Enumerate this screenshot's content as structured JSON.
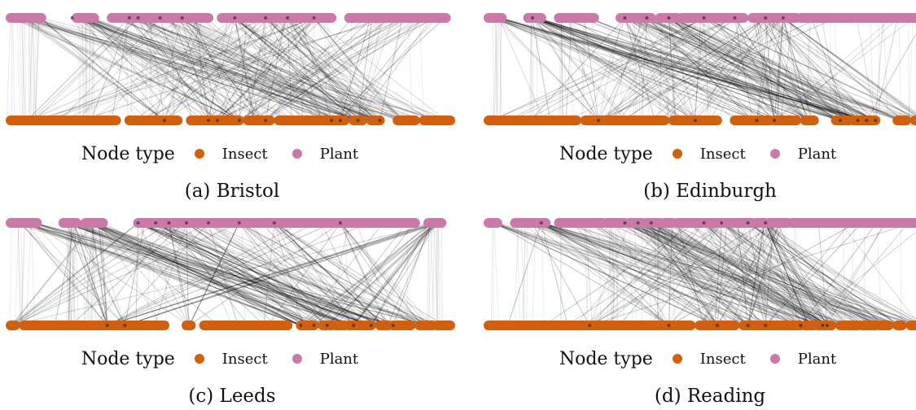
{
  "colors": {
    "insect": "#d45f0a",
    "plant": "#cc78a8",
    "edge": "#000000"
  },
  "legend": {
    "title": "Node type",
    "insect_label": "Insect",
    "plant_label": "Plant"
  },
  "panels": [
    {
      "caption": "(a) Bristol",
      "plant_segments": [
        [
          0.0,
          0.07
        ],
        [
          0.15,
          0.19
        ],
        [
          0.23,
          0.45
        ],
        [
          0.48,
          0.73
        ],
        [
          0.77,
          0.99
        ]
      ],
      "insect_segments": [
        [
          0.0,
          0.24
        ],
        [
          0.27,
          0.38
        ],
        [
          0.41,
          0.52
        ],
        [
          0.54,
          0.59
        ],
        [
          0.61,
          0.76
        ],
        [
          0.78,
          0.8
        ],
        [
          0.82,
          0.84
        ],
        [
          0.88,
          0.92
        ],
        [
          0.94,
          1.0
        ]
      ],
      "hubs_top": [
        0.14,
        0.27,
        0.29,
        0.34,
        0.39,
        0.51,
        0.58,
        0.63,
        0.69
      ],
      "hubs_bottom": [
        0.35,
        0.45,
        0.47,
        0.52,
        0.58,
        0.73,
        0.75,
        0.79,
        0.84
      ],
      "seed": 11
    },
    {
      "caption": "(b) Edinburgh",
      "plant_segments": [
        [
          0.0,
          0.03
        ],
        [
          0.09,
          0.12
        ],
        [
          0.16,
          0.24
        ],
        [
          0.3,
          0.37
        ],
        [
          0.39,
          0.43
        ],
        [
          0.44,
          0.58
        ],
        [
          0.6,
          0.7
        ],
        [
          0.71,
          1.0
        ]
      ],
      "insect_segments": [
        [
          0.0,
          0.2
        ],
        [
          0.22,
          0.4
        ],
        [
          0.42,
          0.52
        ],
        [
          0.56,
          0.64
        ],
        [
          0.65,
          0.7
        ],
        [
          0.72,
          0.74
        ],
        [
          0.79,
          0.82
        ],
        [
          0.83,
          0.88
        ],
        [
          0.93,
          0.95
        ],
        [
          0.97,
          1.0
        ]
      ],
      "hubs_top": [
        0.1,
        0.31,
        0.36,
        0.41,
        0.49,
        0.56,
        0.63,
        0.67
      ],
      "hubs_bottom": [
        0.25,
        0.47,
        0.61,
        0.65,
        0.8,
        0.84,
        0.86,
        0.88
      ],
      "seed": 23
    },
    {
      "caption": "(c) Leeds",
      "plant_segments": [
        [
          0.0,
          0.06
        ],
        [
          0.12,
          0.15
        ],
        [
          0.17,
          0.21
        ],
        [
          0.29,
          0.92
        ],
        [
          0.95,
          0.98
        ]
      ],
      "insect_segments": [
        [
          0.0,
          0.01
        ],
        [
          0.03,
          0.35
        ],
        [
          0.4,
          0.41
        ],
        [
          0.44,
          0.63
        ],
        [
          0.66,
          0.69
        ],
        [
          0.71,
          0.73
        ],
        [
          0.74,
          0.76
        ],
        [
          0.77,
          0.82
        ],
        [
          0.84,
          0.86
        ],
        [
          0.87,
          0.91
        ],
        [
          0.93,
          0.96
        ],
        [
          0.97,
          1.0
        ]
      ],
      "hubs_top": [
        0.29,
        0.33,
        0.36,
        0.4,
        0.45,
        0.52,
        0.6,
        0.75
      ],
      "hubs_bottom": [
        0.22,
        0.26,
        0.66,
        0.69,
        0.72,
        0.78,
        0.82,
        0.87
      ],
      "seed": 37
    },
    {
      "caption": "(d) Reading",
      "plant_segments": [
        [
          0.0,
          0.02
        ],
        [
          0.06,
          0.13
        ],
        [
          0.16,
          0.26
        ],
        [
          0.27,
          0.31
        ],
        [
          0.32,
          0.35
        ],
        [
          0.36,
          0.39
        ],
        [
          0.4,
          0.42
        ],
        [
          0.43,
          0.6
        ],
        [
          0.61,
          0.63
        ],
        [
          0.64,
          0.68
        ],
        [
          0.69,
          1.0
        ]
      ],
      "insect_segments": [
        [
          0.0,
          0.46
        ],
        [
          0.48,
          0.56
        ],
        [
          0.58,
          0.71
        ],
        [
          0.72,
          0.74
        ],
        [
          0.75,
          0.78
        ],
        [
          0.8,
          0.84
        ],
        [
          0.85,
          0.88
        ],
        [
          0.89,
          0.91
        ],
        [
          0.93,
          0.94
        ],
        [
          0.96,
          1.0
        ]
      ],
      "hubs_top": [
        0.12,
        0.31,
        0.34,
        0.37,
        0.49,
        0.53,
        0.59,
        0.63
      ],
      "hubs_bottom": [
        0.23,
        0.41,
        0.52,
        0.59,
        0.63,
        0.71,
        0.76,
        0.77
      ],
      "seed": 51
    }
  ]
}
